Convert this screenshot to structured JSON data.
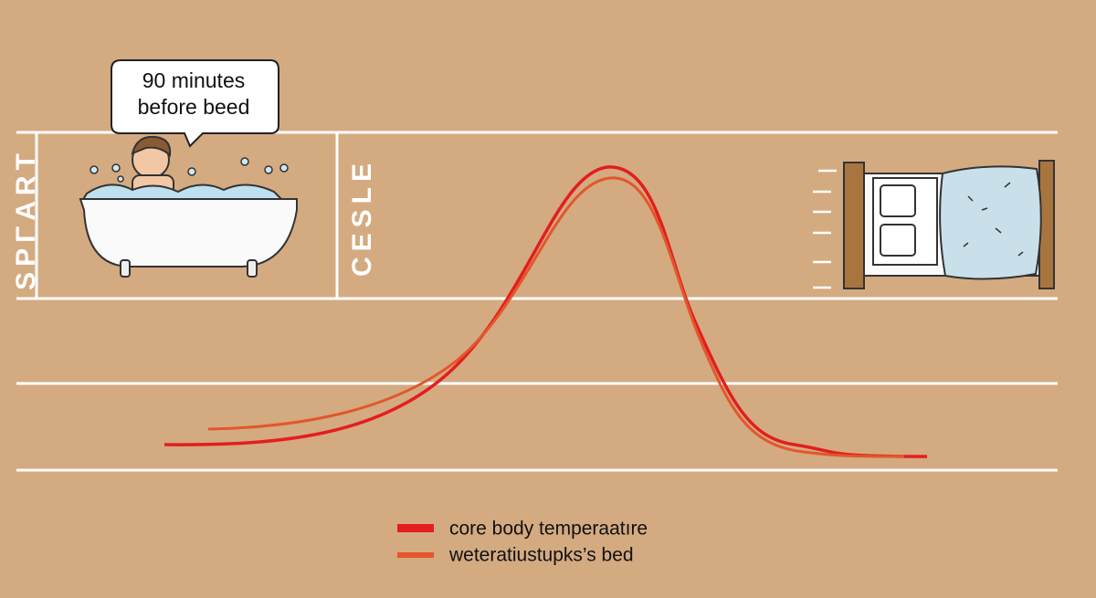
{
  "bubble": {
    "lines": [
      "90 minutes",
      "before beed"
    ]
  },
  "side_labels": [
    "SPΓART",
    "CESLE"
  ],
  "legend": [
    {
      "name": "core body temperaatıre",
      "color": "#e31e1e"
    },
    {
      "name": "weteratiustupks’s bed",
      "color": "#e2572b"
    }
  ]
}
